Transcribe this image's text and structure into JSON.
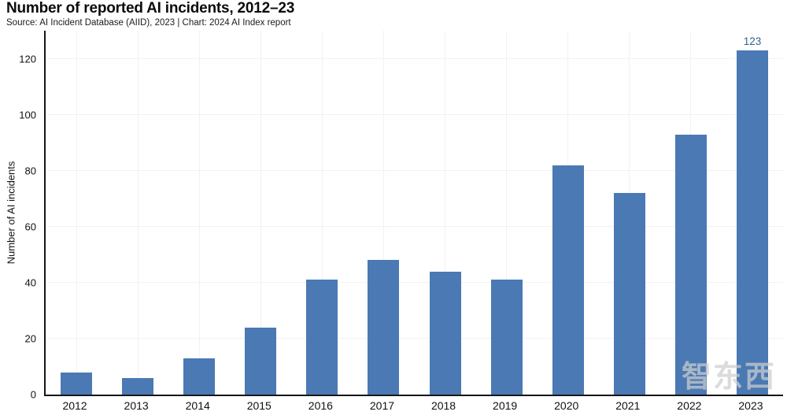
{
  "title": "Number of reported AI incidents, 2012–23",
  "subtitle": "Source: AI Incident Database (AIID), 2023 | Chart: 2024 AI Index report",
  "watermark": {
    "text": "智东西"
  },
  "colors": {
    "bar": "#4a79b4",
    "annotation": "#35618f",
    "axis": "#161616",
    "grid_horizontal": "#f3f0f0",
    "grid_vertical": "#f3f1f1",
    "text": "#111111",
    "background": "#ffffff"
  },
  "chart_data": {
    "type": "bar",
    "title": "Number of reported AI incidents, 2012–23",
    "categories": [
      "2012",
      "2013",
      "2014",
      "2015",
      "2016",
      "2017",
      "2018",
      "2019",
      "2020",
      "2021",
      "2022",
      "2023"
    ],
    "values": [
      8,
      6,
      13,
      24,
      41,
      48,
      44,
      41,
      82,
      72,
      93,
      123
    ],
    "xlabel": "",
    "ylabel": "Number of AI incidents",
    "ylim": [
      0,
      130
    ],
    "yticks": [
      0,
      20,
      40,
      60,
      80,
      100,
      120
    ],
    "grid": true,
    "legend_position": "none",
    "annotations": [
      {
        "category": "2023",
        "text": "123"
      }
    ]
  }
}
